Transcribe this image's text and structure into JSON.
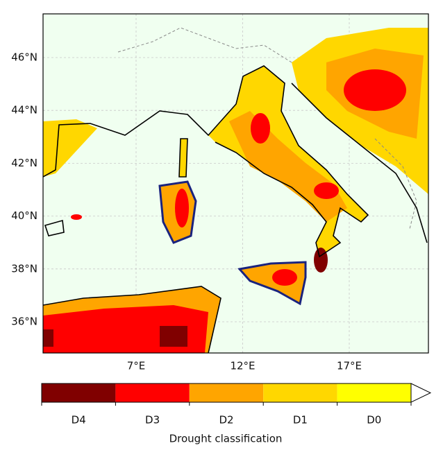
{
  "map": {
    "lat_labels": [
      "46°N",
      "44°N",
      "42°N",
      "40°N",
      "38°N",
      "36°N"
    ],
    "lon_labels": [
      "7°E",
      "12°E",
      "17°E"
    ]
  },
  "legend": {
    "title": "Drought classification",
    "classes": [
      {
        "label": "D4",
        "color": "#800000"
      },
      {
        "label": "D3",
        "color": "#ff0000"
      },
      {
        "label": "D2",
        "color": "#ffa500"
      },
      {
        "label": "D1",
        "color": "#ffd700"
      },
      {
        "label": "D0",
        "color": "#ffff00"
      }
    ]
  }
}
